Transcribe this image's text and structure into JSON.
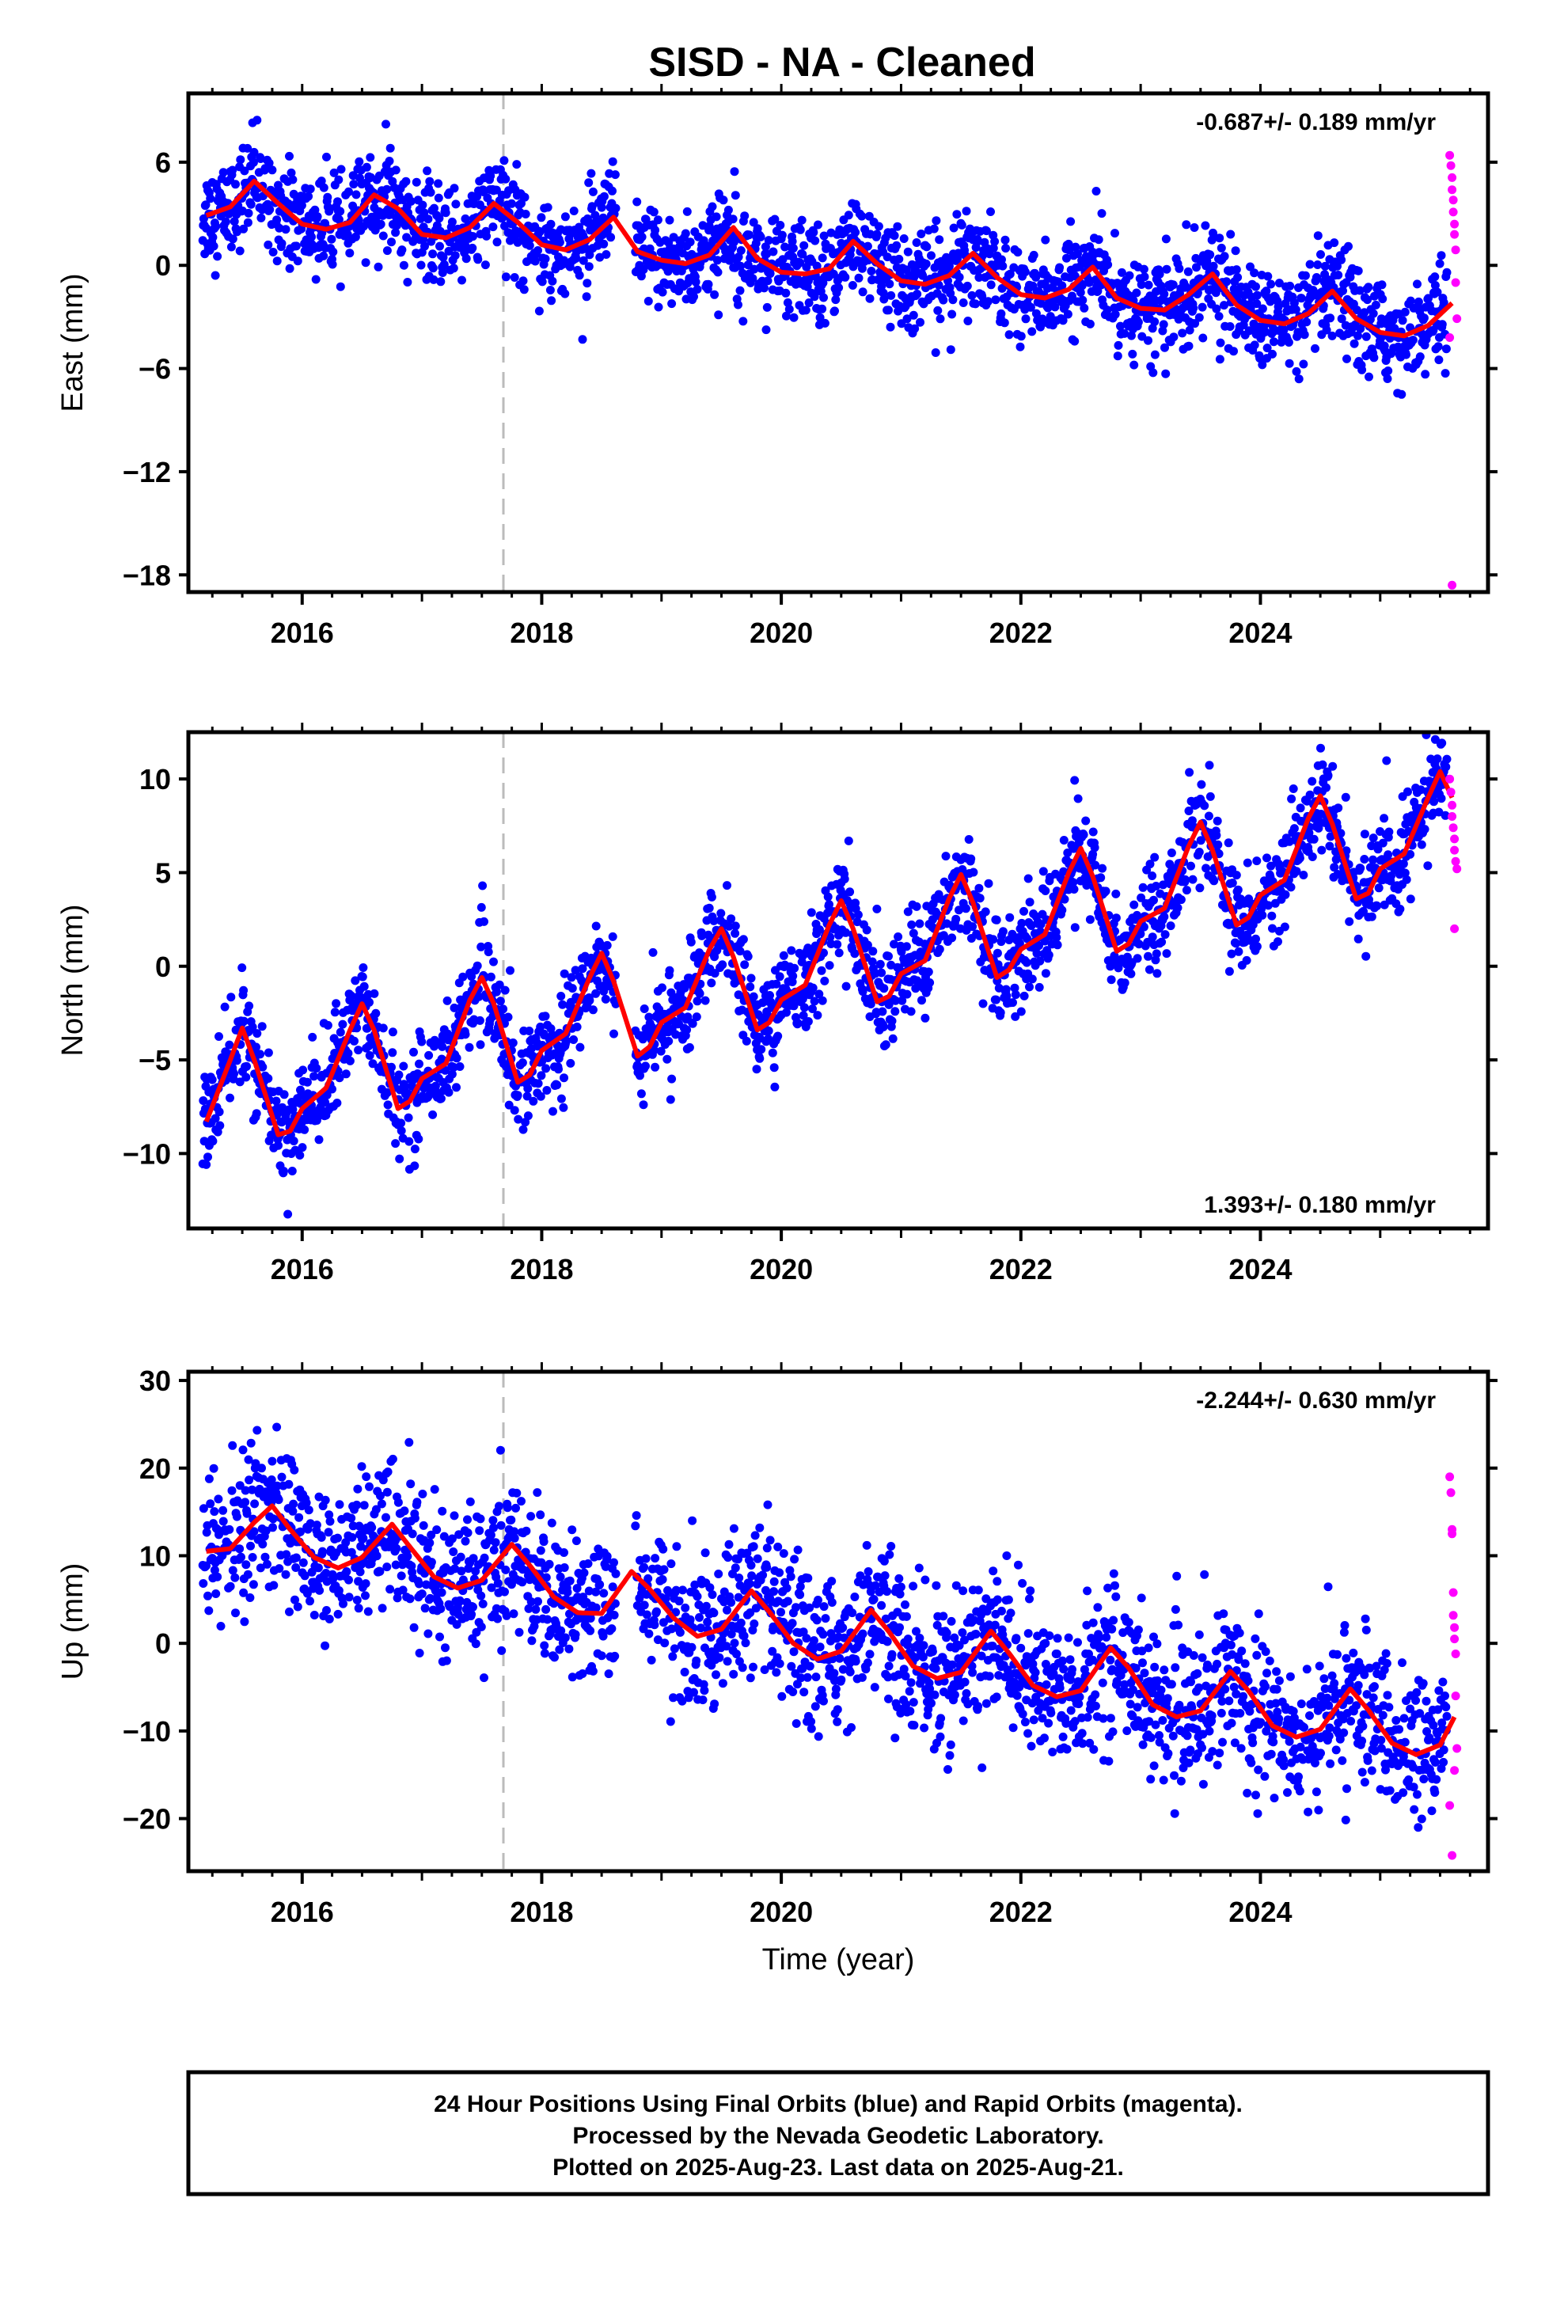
{
  "title": "SISD  - NA - Cleaned",
  "colors": {
    "final_orbit_points": "#0000ff",
    "rapid_orbit_points": "#ff00ff",
    "model_curve": "#ff0000",
    "event_line": "#bbbbbb"
  },
  "footer": {
    "lines": [
      "24 Hour Positions Using Final Orbits (blue) and Rapid Orbits (magenta).",
      "Processed by the Nevada Geodetic Laboratory.",
      "Plotted on 2025-Aug-23. Last data on 2025-Aug-21."
    ]
  },
  "chart_data": [
    {
      "type": "scatter",
      "name": "east",
      "ylabel": "East (mm)",
      "xlabel": "",
      "rate": "-0.687+/- 0.189 mm/yr",
      "rate_position": "top-right",
      "xlim": [
        2015.05,
        2025.9
      ],
      "ylim": [
        -19,
        10
      ],
      "yticks": [
        6,
        0,
        -6,
        -12,
        -18
      ],
      "ytick_labels": [
        "6",
        "0",
        "−6",
        "−12",
        "−18"
      ],
      "xticks": [
        2016,
        2018,
        2020,
        2022,
        2024
      ],
      "xtick_labels": [
        "2016",
        "2018",
        "2020",
        "2022",
        "2024"
      ],
      "event_line_x": 2017.68,
      "model": {
        "x": [
          2015.2,
          2015.4,
          2015.6,
          2015.8,
          2016.0,
          2016.2,
          2016.4,
          2016.6,
          2016.8,
          2017.0,
          2017.2,
          2017.4,
          2017.6,
          2017.8,
          2018.0,
          2018.2,
          2018.4,
          2018.6,
          2018.8,
          2019.0,
          2019.2,
          2019.4,
          2019.6,
          2019.8,
          2020.0,
          2020.2,
          2020.4,
          2020.6,
          2020.8,
          2021.0,
          2021.2,
          2021.4,
          2021.6,
          2021.8,
          2022.0,
          2022.2,
          2022.4,
          2022.6,
          2022.8,
          2023.0,
          2023.2,
          2023.4,
          2023.6,
          2023.8,
          2024.0,
          2024.2,
          2024.4,
          2024.6,
          2024.8,
          2025.0,
          2025.2,
          2025.4,
          2025.6
        ],
        "y": [
          2.9,
          3.4,
          4.9,
          3.6,
          2.4,
          2.1,
          2.5,
          4.1,
          3.3,
          1.8,
          1.6,
          2.2,
          3.6,
          2.5,
          1.2,
          0.9,
          1.5,
          2.8,
          0.8,
          0.3,
          0.1,
          0.6,
          2.2,
          0.4,
          -0.4,
          -0.5,
          -0.2,
          1.4,
          0.1,
          -0.9,
          -1.1,
          -0.6,
          0.7,
          -0.7,
          -1.7,
          -1.9,
          -1.4,
          -0.1,
          -1.9,
          -2.5,
          -2.6,
          -1.7,
          -0.5,
          -2.3,
          -3.2,
          -3.4,
          -2.8,
          -1.5,
          -3.1,
          -3.9,
          -4.1,
          -3.5,
          -2.2
        ]
      },
      "rapid_points": {
        "x": [
          2025.58,
          2025.59,
          2025.6,
          2025.6,
          2025.61,
          2025.61,
          2025.62,
          2025.62,
          2025.63,
          2025.63,
          2025.64,
          2025.58,
          2025.6
        ],
        "y": [
          6.4,
          5.8,
          5.1,
          4.4,
          3.8,
          3.1,
          2.4,
          1.8,
          0.9,
          -1.0,
          -3.1,
          -4.2,
          -18.6
        ]
      }
    },
    {
      "type": "scatter",
      "name": "north",
      "ylabel": "North (mm)",
      "xlabel": "",
      "rate": "1.393+/- 0.180 mm/yr",
      "rate_position": "bottom-right",
      "xlim": [
        2015.05,
        2025.9
      ],
      "ylim": [
        -14,
        12.5
      ],
      "yticks": [
        10,
        5,
        0,
        -5,
        -10
      ],
      "ytick_labels": [
        "10",
        "5",
        "0",
        "−5",
        "−10"
      ],
      "xticks": [
        2016,
        2018,
        2020,
        2022,
        2024
      ],
      "xtick_labels": [
        "2016",
        "2018",
        "2020",
        "2022",
        "2024"
      ],
      "event_line_x": 2017.68,
      "model": {
        "x": [
          2015.2,
          2015.4,
          2015.5,
          2015.6,
          2015.8,
          2015.9,
          2016.0,
          2016.2,
          2016.4,
          2016.5,
          2016.6,
          2016.8,
          2016.9,
          2017.0,
          2017.2,
          2017.4,
          2017.5,
          2017.6,
          2017.8,
          2017.9,
          2018.0,
          2018.2,
          2018.4,
          2018.5,
          2018.6,
          2018.8,
          2018.9,
          2019.0,
          2019.2,
          2019.4,
          2019.5,
          2019.6,
          2019.8,
          2019.9,
          2020.0,
          2020.2,
          2020.4,
          2020.5,
          2020.6,
          2020.8,
          2020.9,
          2021.0,
          2021.2,
          2021.4,
          2021.5,
          2021.6,
          2021.8,
          2021.9,
          2022.0,
          2022.2,
          2022.4,
          2022.5,
          2022.6,
          2022.8,
          2022.9,
          2023.0,
          2023.2,
          2023.4,
          2023.5,
          2023.6,
          2023.8,
          2023.9,
          2024.0,
          2024.2,
          2024.4,
          2024.5,
          2024.6,
          2024.8,
          2024.9,
          2025.0,
          2025.2,
          2025.4,
          2025.5,
          2025.6
        ],
        "y": [
          -8.3,
          -5.0,
          -3.3,
          -5.0,
          -9.0,
          -8.8,
          -7.6,
          -6.5,
          -3.4,
          -2.0,
          -3.4,
          -7.6,
          -7.2,
          -6.0,
          -5.2,
          -1.8,
          -0.6,
          -2.0,
          -6.2,
          -5.8,
          -4.5,
          -3.6,
          -0.6,
          0.7,
          -0.8,
          -4.8,
          -4.3,
          -3.0,
          -2.2,
          0.9,
          2.0,
          0.5,
          -3.4,
          -3.0,
          -1.8,
          -1.0,
          2.2,
          3.5,
          2.0,
          -1.9,
          -1.6,
          -0.4,
          0.3,
          3.6,
          4.9,
          3.4,
          -0.6,
          -0.2,
          0.9,
          1.7,
          5.0,
          6.3,
          4.8,
          0.8,
          1.2,
          2.4,
          3.1,
          6.4,
          7.7,
          6.2,
          2.2,
          2.6,
          3.8,
          4.6,
          7.9,
          9.1,
          7.6,
          3.6,
          3.9,
          5.2,
          6.0,
          9.0,
          10.4,
          9.0
        ]
      },
      "rapid_points": {
        "x": [
          2025.58,
          2025.59,
          2025.6,
          2025.6,
          2025.61,
          2025.62,
          2025.62,
          2025.63,
          2025.64,
          2025.62
        ],
        "y": [
          10.0,
          9.3,
          8.6,
          8.0,
          7.4,
          6.8,
          6.2,
          5.6,
          5.2,
          2.0
        ]
      }
    },
    {
      "type": "scatter",
      "name": "up",
      "ylabel": "Up (mm)",
      "xlabel": "Time (year)",
      "rate": "-2.244+/- 0.630 mm/yr",
      "rate_position": "top-right",
      "xlim": [
        2015.05,
        2025.9
      ],
      "ylim": [
        -26,
        31
      ],
      "yticks": [
        30,
        20,
        10,
        0,
        -10,
        -20
      ],
      "ytick_labels": [
        "30",
        "20",
        "10",
        "0",
        "−10",
        "−20"
      ],
      "xticks": [
        2016,
        2018,
        2020,
        2022,
        2024
      ],
      "xtick_labels": [
        "2016",
        "2018",
        "2020",
        "2022",
        "2024"
      ],
      "event_line_x": 2017.68,
      "model": {
        "x": [
          2015.2,
          2015.4,
          2015.6,
          2015.75,
          2015.9,
          2016.1,
          2016.3,
          2016.5,
          2016.75,
          2016.9,
          2017.1,
          2017.3,
          2017.5,
          2017.75,
          2017.9,
          2018.1,
          2018.3,
          2018.5,
          2018.75,
          2018.9,
          2019.1,
          2019.3,
          2019.5,
          2019.75,
          2019.9,
          2020.1,
          2020.3,
          2020.5,
          2020.75,
          2020.9,
          2021.1,
          2021.3,
          2021.5,
          2021.75,
          2021.9,
          2022.1,
          2022.3,
          2022.5,
          2022.75,
          2022.9,
          2023.1,
          2023.3,
          2023.5,
          2023.75,
          2023.9,
          2024.1,
          2024.3,
          2024.5,
          2024.75,
          2024.9,
          2025.1,
          2025.3,
          2025.5,
          2025.62
        ],
        "y": [
          10.5,
          10.8,
          13.8,
          15.7,
          13.0,
          9.8,
          8.6,
          9.8,
          13.6,
          11.0,
          7.6,
          6.3,
          7.2,
          11.3,
          8.9,
          5.3,
          3.5,
          3.4,
          8.2,
          6.2,
          2.9,
          0.8,
          1.6,
          6.0,
          3.6,
          0.0,
          -1.8,
          -0.9,
          3.8,
          1.3,
          -2.6,
          -4.0,
          -3.3,
          1.4,
          -1.1,
          -4.8,
          -6.1,
          -5.4,
          -0.5,
          -2.8,
          -7.0,
          -8.4,
          -7.7,
          -3.2,
          -5.4,
          -9.4,
          -10.7,
          -9.8,
          -5.2,
          -7.6,
          -11.4,
          -12.7,
          -11.6,
          -8.4
        ]
      },
      "rapid_points": {
        "x": [
          2025.58,
          2025.59,
          2025.6,
          2025.6,
          2025.61,
          2025.61,
          2025.62,
          2025.62,
          2025.63,
          2025.63,
          2025.64,
          2025.58,
          2025.6,
          2025.62
        ],
        "y": [
          19.0,
          17.2,
          13.0,
          12.5,
          5.8,
          3.2,
          1.8,
          0.5,
          -1.2,
          -6.0,
          -12.0,
          -18.5,
          -24.2,
          -14.5
        ]
      }
    }
  ]
}
